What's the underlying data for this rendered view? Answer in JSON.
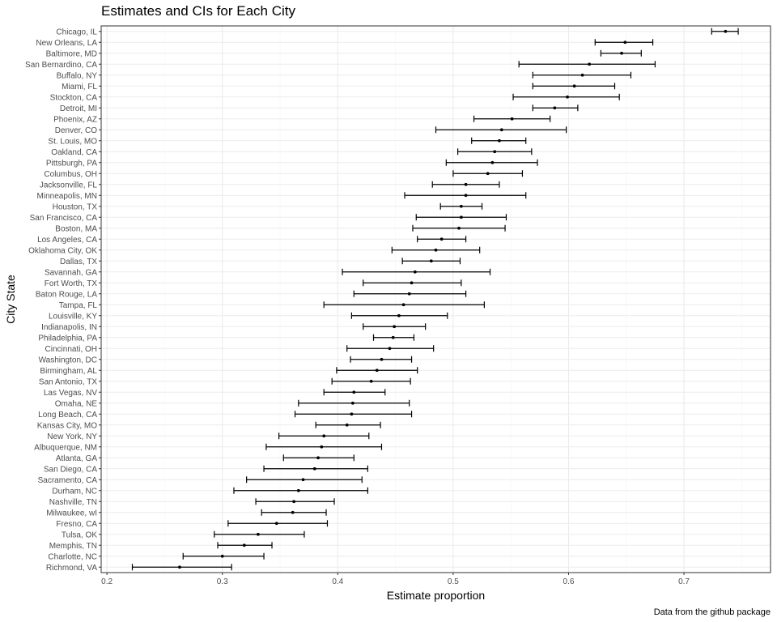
{
  "chart_data": {
    "type": "scatter",
    "title": "Estimates and CIs for Each City",
    "xlabel": "Estimate proportion",
    "ylabel": "City State",
    "caption": "Data from the github package",
    "xlim": [
      0.195,
      0.775
    ],
    "xticks": [
      0.2,
      0.3,
      0.4,
      0.5,
      0.6,
      0.7
    ],
    "xtick_labels": [
      "0.2",
      "0.3",
      "0.4",
      "0.5",
      "0.6",
      "0.7"
    ],
    "grid": true,
    "theme_colors": {
      "panel_border": "#333333",
      "grid_major": "#ebebeb",
      "grid_minor": "#f5f5f5",
      "mark": "#000000"
    },
    "categories": [
      "Chicago, IL",
      "New Orleans, LA",
      "Baltimore, MD",
      "San Bernardino, CA",
      "Buffalo, NY",
      "Miami, FL",
      "Stockton, CA",
      "Detroit, MI",
      "Phoenix, AZ",
      "Denver, CO",
      "St. Louis, MO",
      "Oakland, CA",
      "Pittsburgh, PA",
      "Columbus, OH",
      "Jacksonville, FL",
      "Minneapolis, MN",
      "Houston, TX",
      "San Francisco, CA",
      "Boston, MA",
      "Los Angeles, CA",
      "Oklahoma City, OK",
      "Dallas, TX",
      "Savannah, GA",
      "Fort Worth, TX",
      "Baton Rouge, LA",
      "Tampa, FL",
      "Louisville, KY",
      "Indianapolis, IN",
      "Philadelphia, PA",
      "Cincinnati, OH",
      "Washington, DC",
      "Birmingham, AL",
      "San Antonio, TX",
      "Las Vegas, NV",
      "Omaha, NE",
      "Long Beach, CA",
      "Kansas City, MO",
      "New York, NY",
      "Albuquerque, NM",
      "Atlanta, GA",
      "San Diego, CA",
      "Sacramento, CA",
      "Durham, NC",
      "Nashville, TN",
      "Milwaukee, wI",
      "Fresno, CA",
      "Tulsa, OK",
      "Memphis, TN",
      "Charlotte, NC",
      "Richmond, VA"
    ],
    "estimates": [
      0.736,
      0.649,
      0.646,
      0.618,
      0.612,
      0.605,
      0.599,
      0.588,
      0.551,
      0.542,
      0.54,
      0.536,
      0.534,
      0.53,
      0.511,
      0.511,
      0.507,
      0.507,
      0.505,
      0.49,
      0.485,
      0.481,
      0.467,
      0.464,
      0.462,
      0.457,
      0.453,
      0.449,
      0.448,
      0.445,
      0.438,
      0.434,
      0.429,
      0.414,
      0.413,
      0.412,
      0.408,
      0.388,
      0.386,
      0.383,
      0.38,
      0.37,
      0.366,
      0.362,
      0.361,
      0.347,
      0.331,
      0.319,
      0.3,
      0.263
    ],
    "lower": [
      0.724,
      0.623,
      0.628,
      0.557,
      0.569,
      0.569,
      0.552,
      0.569,
      0.518,
      0.485,
      0.516,
      0.504,
      0.494,
      0.5,
      0.482,
      0.458,
      0.489,
      0.468,
      0.465,
      0.469,
      0.447,
      0.456,
      0.404,
      0.422,
      0.414,
      0.388,
      0.412,
      0.422,
      0.431,
      0.408,
      0.411,
      0.399,
      0.395,
      0.388,
      0.366,
      0.363,
      0.381,
      0.349,
      0.338,
      0.353,
      0.336,
      0.321,
      0.31,
      0.329,
      0.334,
      0.305,
      0.293,
      0.296,
      0.266,
      0.222
    ],
    "upper": [
      0.747,
      0.673,
      0.663,
      0.675,
      0.654,
      0.64,
      0.644,
      0.608,
      0.584,
      0.598,
      0.563,
      0.568,
      0.573,
      0.56,
      0.54,
      0.563,
      0.525,
      0.546,
      0.545,
      0.511,
      0.523,
      0.506,
      0.532,
      0.507,
      0.511,
      0.527,
      0.495,
      0.476,
      0.466,
      0.483,
      0.464,
      0.469,
      0.463,
      0.441,
      0.462,
      0.464,
      0.437,
      0.427,
      0.438,
      0.414,
      0.426,
      0.421,
      0.426,
      0.397,
      0.39,
      0.391,
      0.371,
      0.343,
      0.336,
      0.308
    ]
  }
}
